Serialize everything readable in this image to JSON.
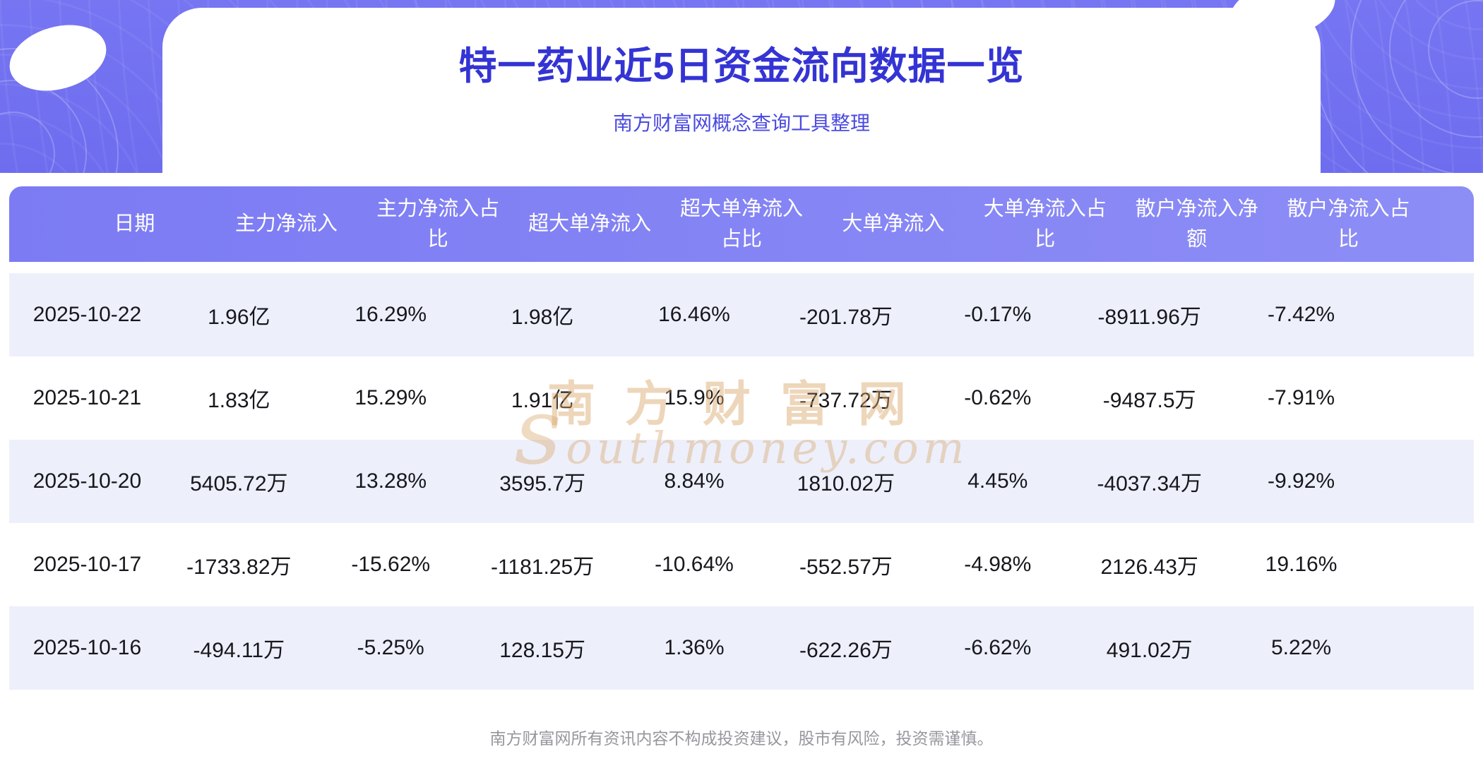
{
  "header": {
    "title": "特一药业近5日资金流向数据一览",
    "subtitle": "南方财富网概念查询工具整理"
  },
  "chart_data": {
    "type": "table",
    "title": "特一药业近5日资金流向数据一览",
    "columns": [
      "日期",
      "主力净流入",
      "主力净流入占\n比",
      "超大单净流入",
      "超大单净流入\n占比",
      "大单净流入",
      "大单净流入占\n比",
      "散户净流入净\n额",
      "散户净流入占\n比"
    ],
    "rows": [
      [
        "2025-10-22",
        "1.96亿",
        "16.29%",
        "1.98亿",
        "16.46%",
        "-201.78万",
        "-0.17%",
        "-8911.96万",
        "-7.42%"
      ],
      [
        "2025-10-21",
        "1.83亿",
        "15.29%",
        "1.91亿",
        "15.9%",
        "-737.72万",
        "-0.62%",
        "-9487.5万",
        "-7.91%"
      ],
      [
        "2025-10-20",
        "5405.72万",
        "13.28%",
        "3595.7万",
        "8.84%",
        "1810.02万",
        "4.45%",
        "-4037.34万",
        "-9.92%"
      ],
      [
        "2025-10-17",
        "-1733.82万",
        "-15.62%",
        "-1181.25万",
        "-10.64%",
        "-552.57万",
        "-4.98%",
        "2126.43万",
        "19.16%"
      ],
      [
        "2025-10-16",
        "-494.11万",
        "-5.25%",
        "128.15万",
        "1.36%",
        "-622.26万",
        "-6.62%",
        "491.02万",
        "5.22%"
      ]
    ]
  },
  "watermark": {
    "cn": "南方财富网",
    "en": "southmoney.com"
  },
  "footer": {
    "disclaimer": "南方财富网所有资讯内容不构成投资建议，股市有风险，投资需谨慎。"
  },
  "colors": {
    "hero_purple": "#6e6def",
    "header_bar_start": "#7c7bf3",
    "header_bar_end": "#8d8df6",
    "title_text": "#3434d4",
    "subtitle_text": "#4a4ae0",
    "row_alt_bg": "#edeffb",
    "cell_text": "#17171c",
    "watermark_tan": "#d8a668",
    "footer_text": "#96969e"
  }
}
